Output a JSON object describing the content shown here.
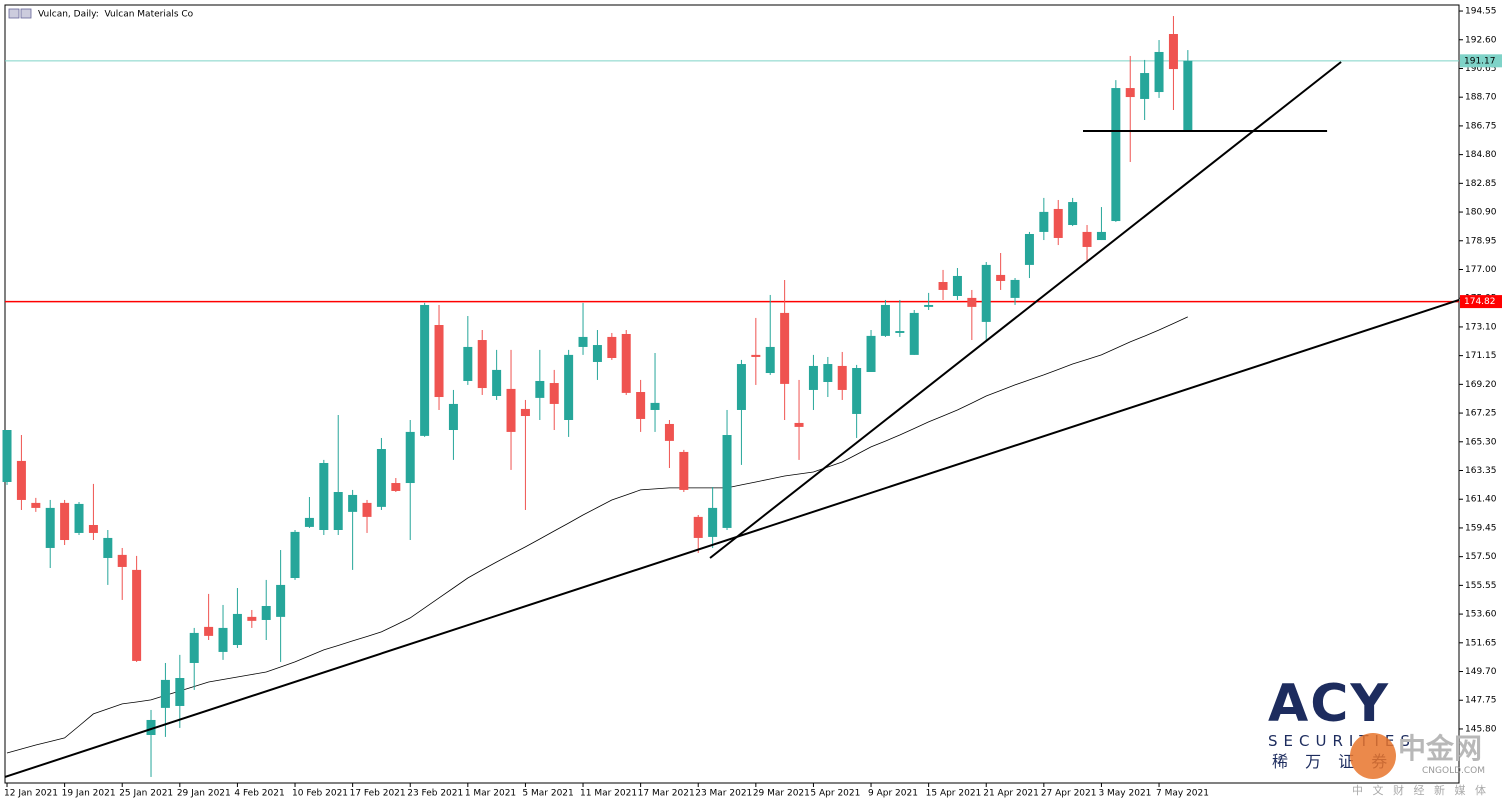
{
  "chart_data": {
    "type": "candlestick",
    "title": "Vulcan, Daily:  Vulcan Materials Co",
    "categories": [
      "12 Jan 2021",
      null,
      null,
      null,
      "19 Jan 2021",
      null,
      null,
      null,
      "25 Jan 2021",
      null,
      null,
      null,
      "29 Jan 2021",
      null,
      null,
      null,
      "4 Feb 2021",
      null,
      null,
      null,
      "10 Feb 2021",
      null,
      null,
      null,
      "17 Feb 2021",
      null,
      null,
      null,
      "23 Feb 2021",
      null,
      null,
      null,
      "1 Mar 2021",
      null,
      null,
      null,
      "5 Mar 2021",
      null,
      null,
      null,
      "11 Mar 2021",
      null,
      null,
      null,
      "17 Mar 2021",
      null,
      null,
      null,
      "23 Mar 2021",
      null,
      null,
      null,
      "29 Mar 2021",
      null,
      null,
      null,
      "5 Apr 2021",
      null,
      null,
      null,
      "9 Apr 2021",
      null,
      null,
      null,
      "15 Apr 2021",
      null,
      null,
      null,
      "21 Apr 2021",
      null,
      null,
      null,
      "27 Apr 2021",
      null,
      null,
      null,
      "3 May 2021",
      null,
      null,
      null,
      "7 May 2021",
      null,
      null
    ],
    "open": [
      162.57,
      164.0,
      161.15,
      158.09,
      161.15,
      159.11,
      159.65,
      157.41,
      157.62,
      156.6,
      145.39,
      147.23,
      147.36,
      150.28,
      152.73,
      151.03,
      151.5,
      153.41,
      153.2,
      153.41,
      156.05,
      159.52,
      159.31,
      159.31,
      160.54,
      161.15,
      160.88,
      162.5,
      162.5,
      165.7,
      173.23,
      166.1,
      169.43,
      172.21,
      168.41,
      168.89,
      167.53,
      168.28,
      169.29,
      166.78,
      171.74,
      170.72,
      172.42,
      172.62,
      168.68,
      167.46,
      166.51,
      164.61,
      160.2,
      158.84,
      159.45,
      167.46,
      171.2,
      169.97,
      174.05,
      166.58,
      168.82,
      169.36,
      170.45,
      167.19,
      170.04,
      172.49,
      172.69,
      171.2,
      174.46,
      176.15,
      175.2,
      175.07,
      173.44,
      176.63,
      175.07,
      177.31,
      179.55,
      181.11,
      180.02,
      179.55,
      179.0,
      180.29,
      189.32,
      188.58,
      189.05,
      192.99,
      186.47
    ],
    "high": [
      166.1,
      165.76,
      161.49,
      161.35,
      161.35,
      161.21,
      162.44,
      159.31,
      158.09,
      157.55,
      147.09,
      150.28,
      150.83,
      152.66,
      154.97,
      154.22,
      155.37,
      153.88,
      155.92,
      157.95,
      159.31,
      161.55,
      164.07,
      167.12,
      162.03,
      161.35,
      165.56,
      162.84,
      166.78,
      174.73,
      174.59,
      168.82,
      173.84,
      172.89,
      171.54,
      171.54,
      168.14,
      171.54,
      170.18,
      171.54,
      174.73,
      172.89,
      172.69,
      172.89,
      169.5,
      171.33,
      166.78,
      164.75,
      160.33,
      162.23,
      167.46,
      170.86,
      173.71,
      175.27,
      176.29,
      169.5,
      171.2,
      171.06,
      171.4,
      170.52,
      172.89,
      174.93,
      174.93,
      174.25,
      175.41,
      176.97,
      177.1,
      175.61,
      177.51,
      178.12,
      176.42,
      179.55,
      181.86,
      181.72,
      181.86,
      180.02,
      181.24,
      189.86,
      191.5,
      191.23,
      192.58,
      194.21,
      191.9
    ],
    "low": [
      162.37,
      160.67,
      160.54,
      156.73,
      158.29,
      158.97,
      158.63,
      155.58,
      154.56,
      150.35,
      142.54,
      145.26,
      145.87,
      148.45,
      151.84,
      150.49,
      151.3,
      152.66,
      151.84,
      150.35,
      155.92,
      159.45,
      158.97,
      158.97,
      156.6,
      159.11,
      160.67,
      161.89,
      158.63,
      165.63,
      167.46,
      164.07,
      169.16,
      168.48,
      168.14,
      163.39,
      160.67,
      166.78,
      166.1,
      165.63,
      171.2,
      169.5,
      170.86,
      168.48,
      165.97,
      165.97,
      163.52,
      161.89,
      157.75,
      158.09,
      159.31,
      163.73,
      169.16,
      169.84,
      166.78,
      164.07,
      167.46,
      168.34,
      168.14,
      165.56,
      170.04,
      172.42,
      172.42,
      171.2,
      174.25,
      174.93,
      174.93,
      172.21,
      172.21,
      175.61,
      174.59,
      176.42,
      179.0,
      178.66,
      179.95,
      177.44,
      179.0,
      180.23,
      184.3,
      187.15,
      188.65,
      187.83,
      186.4
    ],
    "close": [
      166.1,
      161.35,
      160.81,
      160.81,
      158.63,
      161.08,
      159.11,
      158.77,
      156.8,
      150.42,
      146.41,
      149.13,
      149.26,
      152.32,
      152.12,
      152.66,
      153.61,
      153.14,
      154.15,
      155.58,
      159.18,
      160.13,
      163.86,
      161.89,
      161.69,
      160.2,
      164.81,
      161.96,
      165.97,
      174.59,
      168.34,
      167.87,
      171.74,
      168.95,
      170.18,
      165.97,
      167.05,
      169.43,
      167.87,
      171.2,
      172.42,
      171.87,
      170.99,
      168.62,
      166.85,
      167.94,
      165.36,
      162.03,
      158.77,
      160.81,
      165.76,
      170.58,
      171.06,
      171.74,
      169.23,
      166.31,
      170.45,
      170.58,
      168.82,
      170.31,
      172.49,
      174.59,
      172.82,
      174.05,
      174.59,
      175.61,
      176.56,
      174.46,
      177.31,
      176.22,
      176.29,
      179.41,
      180.91,
      179.14,
      181.58,
      178.53,
      179.55,
      189.32,
      188.71,
      190.34,
      191.77,
      190.61,
      191.17
    ],
    "up_color": "#26a69a",
    "down_color": "#ef5350",
    "ma": {
      "color": "#000000",
      "values": [
        144.17,
        144.44,
        144.71,
        144.95,
        145.19,
        146.0,
        146.82,
        147.16,
        147.5,
        147.63,
        147.77,
        148.08,
        148.38,
        148.68,
        148.99,
        149.16,
        149.33,
        149.5,
        149.67,
        150.01,
        150.35,
        150.76,
        151.17,
        151.47,
        151.78,
        152.08,
        152.39,
        152.86,
        153.34,
        154.02,
        154.7,
        155.37,
        156.05,
        156.6,
        157.14,
        157.65,
        158.16,
        158.7,
        159.24,
        159.78,
        160.33,
        160.84,
        161.35,
        161.69,
        162.03,
        162.1,
        162.17,
        162.17,
        162.17,
        162.17,
        162.17,
        162.37,
        162.57,
        162.77,
        162.98,
        163.11,
        163.25,
        163.59,
        163.93,
        164.44,
        164.95,
        165.35,
        165.76,
        166.2,
        166.65,
        167.05,
        167.46,
        167.93,
        168.41,
        168.78,
        169.16,
        169.5,
        169.84,
        170.21,
        170.58,
        170.89,
        171.2,
        171.64,
        172.08,
        172.48,
        172.89,
        173.33,
        173.78
      ]
    },
    "hlines": [
      {
        "value": 191.17,
        "color": "#7fd3c8"
      },
      {
        "value": 174.82,
        "color": "#ff0000"
      }
    ],
    "trendlines": [
      {
        "x": [
          -0.14,
          100.83
        ],
        "y": [
          142.54,
          174.93
        ],
        "color": "#000000"
      },
      {
        "x": [
          48.82,
          92.64
        ],
        "y": [
          157.41,
          191.09
        ],
        "color": "#000000"
      },
      {
        "x": [
          74.72,
          91.67
        ],
        "y": [
          186.4,
          186.4
        ],
        "color": "#000000"
      }
    ],
    "xlim": [
      -0.14,
      100.83
    ],
    "ylim": [
      142.13,
      194.96
    ],
    "yticks": [
      194.55,
      {
        "value": 192.6,
        "label": "192.60"
      },
      190.65,
      {
        "value": 188.7,
        "label": "188.70"
      },
      186.75,
      {
        "value": 184.8,
        "label": "184.80"
      },
      182.85,
      {
        "value": 180.9,
        "label": "180.90"
      },
      178.95,
      {
        "value": 177,
        "label": "177.00"
      },
      175.05,
      {
        "value": 173.1,
        "label": "173.10"
      },
      171.15,
      {
        "value": 169.2,
        "label": "169.20"
      },
      167.25,
      {
        "value": 165.3,
        "label": "165.30"
      },
      163.35,
      {
        "value": 161.4,
        "label": "161.40"
      },
      159.45,
      {
        "value": 157.5,
        "label": "157.50"
      },
      155.55,
      {
        "value": 153.6,
        "label": "153.60"
      },
      151.65,
      {
        "value": 149.7,
        "label": "149.70"
      },
      147.75,
      {
        "value": 145.8,
        "label": "145.80"
      }
    ],
    "grid": false
  },
  "watermark": {
    "brand": "ACY",
    "sub": "SECURITIES",
    "cn": "稀 万 证 券",
    "site": "中金网",
    "site_url": "CNGOLD.COM",
    "slogan": "中 文 财 经 新 媒 体"
  }
}
